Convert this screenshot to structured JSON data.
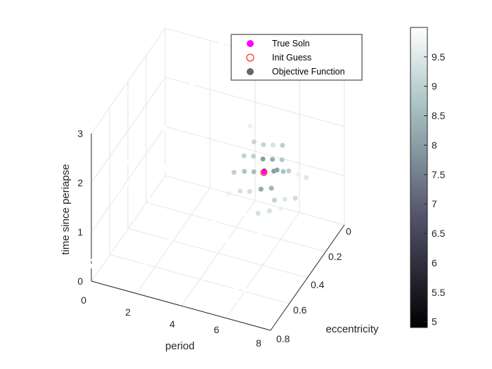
{
  "chart_data": {
    "type": "scatter3d",
    "xlabel": "period",
    "ylabel": "eccentricity",
    "zlabel": "time since periapse",
    "xlim": [
      0,
      8
    ],
    "ylim": [
      0,
      0.8
    ],
    "zlim": [
      0,
      3
    ],
    "x_ticks": [
      "0",
      "2",
      "4",
      "6",
      "8"
    ],
    "y_ticks": [
      "0",
      "0.2",
      "0.4",
      "0.6",
      "0.8"
    ],
    "z_ticks": [
      "0",
      "1",
      "2",
      "3"
    ],
    "grid": true,
    "legend_position": "top-right",
    "legend": [
      "True Soln",
      "Init Guess",
      "Objective Function"
    ],
    "colorbar": {
      "range": [
        4.9,
        10
      ],
      "ticks": [
        "5",
        "5.5",
        "6",
        "6.5",
        "7",
        "7.5",
        "8",
        "8.5",
        "9",
        "9.5"
      ],
      "colormap": "bone",
      "colors": [
        "#000000",
        "#1c1c26",
        "#383849",
        "#55546d",
        "#717c8b",
        "#8ea3a9",
        "#acc5c5",
        "#d5e2e2",
        "#ffffff"
      ]
    },
    "series": [
      {
        "name": "True Soln",
        "color": "#ff00ff",
        "marker": "filled-circle",
        "points": [
          [
            4.9,
            0.12,
            1.0
          ]
        ]
      },
      {
        "name": "Init Guess",
        "color": "#ff0000",
        "marker": "open-circle",
        "points": [
          [
            4.9,
            0.12,
            1.0
          ]
        ]
      },
      {
        "name": "Objective Function",
        "color": "#666666",
        "marker": "filled-circle",
        "points": [
          [
            0.7,
            0.8,
            2.2
          ],
          [
            0.8,
            0.75,
            2.2
          ],
          [
            0.95,
            0.72,
            2.25
          ],
          [
            1.15,
            0.7,
            2.3
          ],
          [
            1.3,
            0.68,
            2.3
          ],
          [
            0.8,
            0.72,
            1.7
          ],
          [
            1.05,
            0.65,
            1.7
          ],
          [
            1.2,
            0.62,
            1.7
          ],
          [
            1.4,
            0.6,
            1.75
          ],
          [
            1.7,
            0.52,
            1.7
          ],
          [
            2.0,
            0.48,
            1.7
          ],
          [
            1.55,
            0.64,
            1.35
          ],
          [
            1.8,
            0.6,
            1.35
          ],
          [
            2.2,
            0.62,
            0.55
          ],
          [
            2.4,
            0.6,
            0.55
          ],
          [
            2.6,
            0.58,
            0.55
          ],
          [
            2.0,
            0.7,
            0.35
          ],
          [
            2.3,
            0.68,
            0.35
          ],
          [
            0.3,
            0.85,
            0.6
          ],
          [
            0.2,
            0.88,
            0.55
          ],
          [
            0.25,
            0.86,
            0.5
          ],
          [
            3.0,
            0.45,
            1.2
          ],
          [
            3.3,
            0.42,
            1.2
          ],
          [
            3.6,
            0.4,
            1.15
          ],
          [
            3.9,
            0.36,
            1.1
          ],
          [
            4.2,
            0.33,
            1.05
          ],
          [
            4.5,
            0.28,
            1.0
          ],
          [
            4.8,
            0.25,
            0.95
          ],
          [
            5.1,
            0.2,
            0.9
          ],
          [
            5.4,
            0.16,
            0.85
          ],
          [
            3.2,
            0.35,
            1.4
          ],
          [
            3.5,
            0.32,
            1.35
          ],
          [
            3.8,
            0.28,
            1.3
          ],
          [
            4.1,
            0.25,
            1.25
          ],
          [
            4.4,
            0.21,
            1.2
          ],
          [
            4.7,
            0.18,
            1.15
          ],
          [
            5.0,
            0.14,
            1.1
          ],
          [
            5.3,
            0.11,
            1.05
          ],
          [
            5.6,
            0.08,
            1.0
          ],
          [
            3.4,
            0.28,
            1.6
          ],
          [
            3.7,
            0.25,
            1.55
          ],
          [
            4.0,
            0.22,
            1.5
          ],
          [
            4.3,
            0.19,
            1.45
          ],
          [
            4.6,
            0.16,
            1.4
          ],
          [
            4.9,
            0.13,
            1.3
          ],
          [
            5.2,
            0.1,
            1.25
          ],
          [
            5.5,
            0.07,
            1.2
          ],
          [
            3.6,
            0.22,
            1.8
          ],
          [
            3.9,
            0.19,
            1.75
          ],
          [
            4.2,
            0.16,
            1.7
          ],
          [
            4.5,
            0.13,
            1.6
          ],
          [
            4.8,
            0.1,
            1.5
          ],
          [
            5.1,
            0.07,
            1.45
          ],
          [
            5.4,
            0.04,
            1.4
          ],
          [
            3.0,
            0.2,
            2.0
          ],
          [
            3.3,
            0.18,
            1.95
          ],
          [
            3.6,
            0.15,
            1.9
          ],
          [
            3.9,
            0.12,
            1.85
          ],
          [
            4.2,
            0.1,
            1.8
          ],
          [
            2.6,
            0.3,
            1.9
          ],
          [
            2.8,
            0.28,
            1.85
          ],
          [
            2.3,
            0.35,
            1.6
          ],
          [
            2.5,
            0.33,
            1.5
          ],
          [
            2.7,
            0.3,
            1.4
          ],
          [
            3.8,
            0.5,
            0.9
          ],
          [
            4.1,
            0.46,
            0.85
          ],
          [
            4.4,
            0.42,
            0.8
          ],
          [
            4.7,
            0.38,
            0.75
          ],
          [
            5.0,
            0.33,
            0.7
          ],
          [
            5.3,
            0.28,
            0.65
          ],
          [
            5.6,
            0.23,
            0.6
          ],
          [
            5.9,
            0.18,
            0.55
          ],
          [
            4.0,
            0.55,
            0.6
          ],
          [
            4.3,
            0.5,
            0.55
          ],
          [
            4.6,
            0.46,
            0.5
          ],
          [
            4.9,
            0.41,
            0.45
          ],
          [
            5.2,
            0.36,
            0.4
          ],
          [
            5.5,
            0.31,
            0.35
          ],
          [
            5.8,
            0.26,
            0.3
          ],
          [
            6.1,
            0.21,
            0.25
          ],
          [
            5.2,
            0.05,
            0.9
          ],
          [
            5.6,
            0.02,
            0.85
          ],
          [
            6.0,
            0.01,
            0.8
          ],
          [
            6.3,
            0.0,
            0.75
          ],
          [
            5.7,
            0.2,
            0.75
          ],
          [
            6.0,
            0.16,
            0.7
          ],
          [
            6.3,
            0.12,
            0.65
          ],
          [
            6.6,
            0.08,
            0.6
          ],
          [
            2.3,
            0.02,
            2.9
          ],
          [
            2.5,
            0.0,
            3.0
          ],
          [
            2.1,
            0.05,
            2.8
          ],
          [
            1.9,
            0.08,
            2.6
          ],
          [
            1.7,
            0.12,
            2.4
          ],
          [
            1.5,
            0.15,
            2.2
          ],
          [
            1.3,
            0.18,
            2.05
          ],
          [
            1.15,
            0.22,
            1.9
          ],
          [
            1.0,
            0.25,
            1.75
          ],
          [
            4.8,
            0.7,
            0.05
          ],
          [
            5.1,
            0.68,
            0.05
          ],
          [
            5.4,
            0.65,
            0.05
          ],
          [
            5.7,
            0.62,
            0.05
          ],
          [
            6.0,
            0.6,
            0.05
          ],
          [
            5.0,
            0.75,
            0.0
          ],
          [
            5.3,
            0.72,
            0.0
          ],
          [
            5.6,
            0.7,
            0.0
          ],
          [
            5.9,
            0.67,
            0.0
          ]
        ]
      }
    ]
  }
}
